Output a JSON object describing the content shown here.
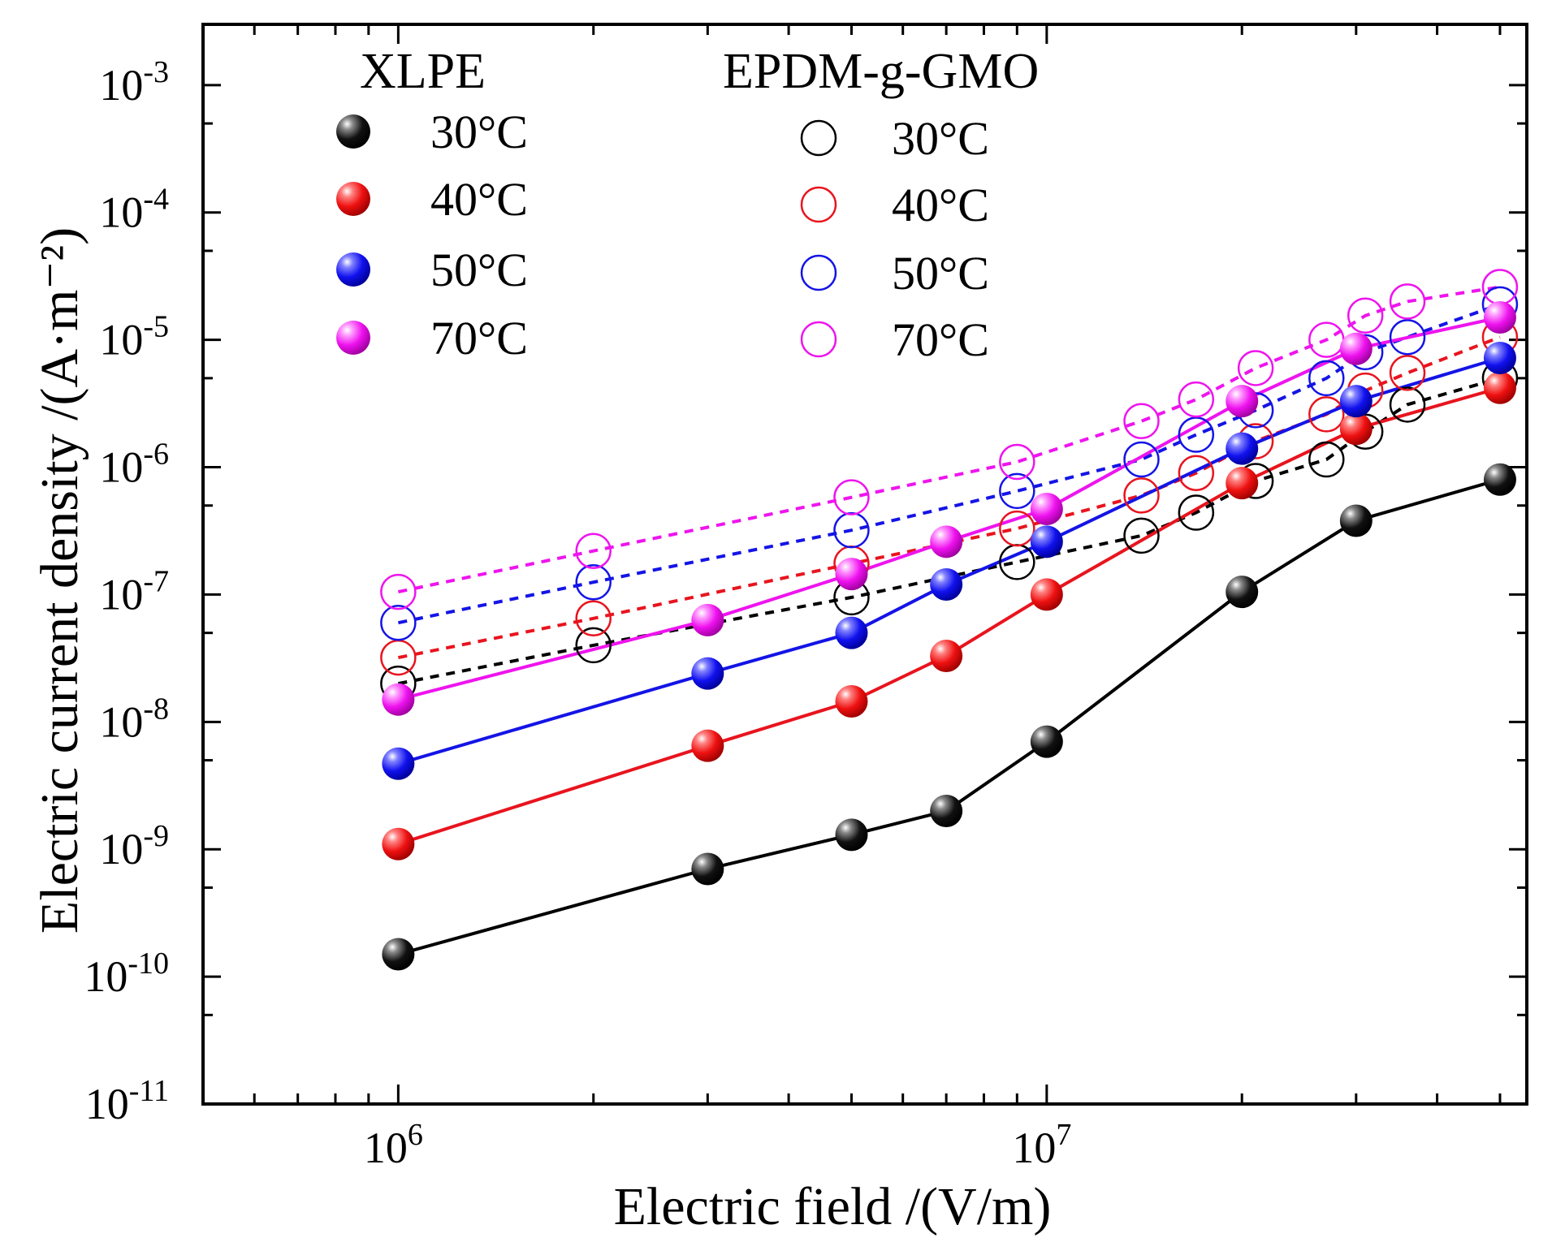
{
  "chart_data": {
    "type": "scatter",
    "xscale": "log",
    "yscale": "log",
    "xlabel": "Electric field /(V/m)",
    "ylabel": "Electric current density /(A·m⁻²)",
    "xlim": [
      500000,
      55000000
    ],
    "ylim": [
      1e-11,
      0.003
    ],
    "x_ticks": [
      {
        "base": "10",
        "exp": "6",
        "value": 1000000
      },
      {
        "base": "10",
        "exp": "7",
        "value": 10000000
      }
    ],
    "y_ticks": [
      {
        "base": "10",
        "exp": "-11",
        "value": 1e-11
      },
      {
        "base": "10",
        "exp": "-10",
        "value": 1e-10
      },
      {
        "base": "10",
        "exp": "-9",
        "value": 1e-09
      },
      {
        "base": "10",
        "exp": "-8",
        "value": 1e-08
      },
      {
        "base": "10",
        "exp": "-7",
        "value": 1e-07
      },
      {
        "base": "10",
        "exp": "-6",
        "value": 1e-06
      },
      {
        "base": "10",
        "exp": "-5",
        "value": 1e-05
      },
      {
        "base": "10",
        "exp": "-4",
        "value": 0.0001
      },
      {
        "base": "10",
        "exp": "-3",
        "value": 0.001
      }
    ],
    "legend_groups": [
      {
        "title": "XLPE",
        "style": "filled",
        "line": "solid"
      },
      {
        "title": "EPDM-g-GMO",
        "style": "open",
        "line": "dashed"
      }
    ],
    "series": [
      {
        "group": "XLPE",
        "name": "30°C",
        "color": "#000000",
        "style": "filled",
        "x": [
          1000000,
          3000000,
          5000000,
          7000000,
          10000000,
          20000000,
          30000000,
          50000000
        ],
        "y": [
          1.5e-10,
          7e-10,
          1.3e-09,
          2e-09,
          7e-09,
          1.05e-07,
          3.8e-07,
          8e-07
        ]
      },
      {
        "group": "XLPE",
        "name": "40°C",
        "color": "#e8141e",
        "style": "filled",
        "x": [
          1000000,
          3000000,
          5000000,
          7000000,
          10000000,
          20000000,
          30000000,
          50000000
        ],
        "y": [
          1.1e-09,
          6.5e-09,
          1.45e-08,
          3.3e-08,
          1e-07,
          7.5e-07,
          2e-06,
          4.2e-06
        ]
      },
      {
        "group": "XLPE",
        "name": "50°C",
        "color": "#1414e6",
        "style": "filled",
        "x": [
          1000000,
          3000000,
          5000000,
          7000000,
          10000000,
          20000000,
          30000000,
          50000000
        ],
        "y": [
          4.7e-09,
          2.4e-08,
          5e-08,
          1.2e-07,
          2.6e-07,
          1.4e-06,
          3.3e-06,
          7.2e-06
        ]
      },
      {
        "group": "XLPE",
        "name": "70°C",
        "color": "#ee14ee",
        "style": "filled",
        "x": [
          1000000,
          3000000,
          5000000,
          7000000,
          10000000,
          20000000,
          30000000,
          50000000
        ],
        "y": [
          1.5e-08,
          6.3e-08,
          1.45e-07,
          2.6e-07,
          4.7e-07,
          3.3e-06,
          8.5e-06,
          1.5e-05
        ]
      },
      {
        "group": "EPDM-g-GMO",
        "name": "30°C",
        "color": "#000000",
        "style": "open",
        "x": [
          1000000,
          2000000,
          5000000,
          9000000,
          14000000,
          17000000,
          21000000,
          27000000,
          31000000,
          36000000,
          50000000
        ],
        "y": [
          2e-08,
          4e-08,
          9.5e-08,
          1.8e-07,
          2.9e-07,
          4.4e-07,
          7.8e-07,
          1.15e-06,
          1.9e-06,
          3.1e-06,
          5e-06
        ]
      },
      {
        "group": "EPDM-g-GMO",
        "name": "40°C",
        "color": "#e8141e",
        "style": "open",
        "x": [
          1000000,
          2000000,
          5000000,
          9000000,
          14000000,
          17000000,
          21000000,
          27000000,
          31000000,
          36000000,
          50000000
        ],
        "y": [
          3.2e-08,
          6.5e-08,
          1.75e-07,
          3.3e-07,
          6e-07,
          9e-07,
          1.6e-06,
          2.6e-06,
          4e-06,
          5.5e-06,
          1.05e-05
        ]
      },
      {
        "group": "EPDM-g-GMO",
        "name": "50°C",
        "color": "#1414e6",
        "style": "open",
        "x": [
          1000000,
          2000000,
          5000000,
          9000000,
          14000000,
          17000000,
          21000000,
          27000000,
          31000000,
          36000000,
          50000000
        ],
        "y": [
          6e-08,
          1.25e-07,
          3.2e-07,
          6.5e-07,
          1.15e-06,
          1.8e-06,
          2.8e-06,
          5e-06,
          8e-06,
          1.05e-05,
          1.9e-05
        ]
      },
      {
        "group": "EPDM-g-GMO",
        "name": "70°C",
        "color": "#ee14ee",
        "style": "open",
        "x": [
          1000000,
          2000000,
          5000000,
          9000000,
          14000000,
          17000000,
          21000000,
          27000000,
          31000000,
          36000000,
          50000000
        ],
        "y": [
          1.05e-07,
          2.2e-07,
          5.8e-07,
          1.1e-06,
          2.3e-06,
          3.4e-06,
          6e-06,
          1e-05,
          1.55e-05,
          2e-05,
          2.6e-05
        ]
      }
    ]
  }
}
